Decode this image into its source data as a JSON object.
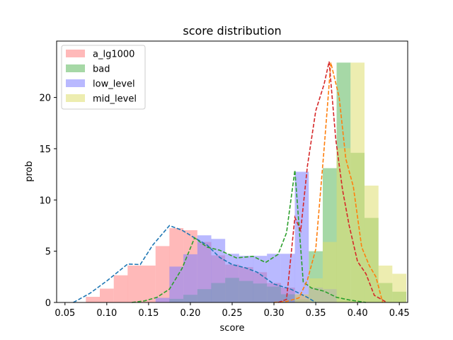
{
  "chart_data": {
    "type": "bar",
    "title": "score distribution",
    "xlabel": "score",
    "ylabel": "prob",
    "xlim": [
      0.04,
      0.46
    ],
    "ylim": [
      0,
      25.5
    ],
    "xticks": [
      0.05,
      0.1,
      0.15,
      0.2,
      0.25,
      0.3,
      0.35,
      0.4,
      0.45
    ],
    "xtick_labels": [
      "0.05",
      "0.10",
      "0.15",
      "0.20",
      "0.25",
      "0.30",
      "0.35",
      "0.40",
      "0.45"
    ],
    "yticks": [
      0,
      5,
      10,
      15,
      20
    ],
    "ytick_labels": [
      "0",
      "5",
      "10",
      "15",
      "20"
    ],
    "legend_position": "top-left",
    "bin_width": 0.0167,
    "series": [
      {
        "name": "a_lg1000",
        "color": "#ff7f7f",
        "bars": [
          {
            "x": 0.0833,
            "h": 0.55
          },
          {
            "x": 0.1,
            "h": 1.35
          },
          {
            "x": 0.1167,
            "h": 2.65
          },
          {
            "x": 0.1333,
            "h": 3.6
          },
          {
            "x": 0.15,
            "h": 3.6
          },
          {
            "x": 0.1667,
            "h": 5.5
          },
          {
            "x": 0.1833,
            "h": 7.25
          },
          {
            "x": 0.2,
            "h": 7.05
          },
          {
            "x": 0.2167,
            "h": 5.9
          },
          {
            "x": 0.2333,
            "h": 4.6
          },
          {
            "x": 0.25,
            "h": 3.7
          },
          {
            "x": 0.2667,
            "h": 3.45
          },
          {
            "x": 0.2833,
            "h": 2.95
          },
          {
            "x": 0.3,
            "h": 1.9
          },
          {
            "x": 0.3167,
            "h": 1.45
          },
          {
            "x": 0.3333,
            "h": 0.75
          }
        ]
      },
      {
        "name": "bad",
        "color": "#5cb85c",
        "bars": [
          {
            "x": 0.1833,
            "h": 0.35
          },
          {
            "x": 0.2,
            "h": 0.75
          },
          {
            "x": 0.2167,
            "h": 1.3
          },
          {
            "x": 0.2333,
            "h": 1.9
          },
          {
            "x": 0.25,
            "h": 2.4
          },
          {
            "x": 0.2667,
            "h": 2.1
          },
          {
            "x": 0.2833,
            "h": 1.85
          },
          {
            "x": 0.3,
            "h": 1.55
          },
          {
            "x": 0.3167,
            "h": 0.8
          },
          {
            "x": 0.3333,
            "h": 0.3
          },
          {
            "x": 0.35,
            "h": 5.0
          },
          {
            "x": 0.3667,
            "h": 13.1
          },
          {
            "x": 0.3833,
            "h": 23.4
          },
          {
            "x": 0.4,
            "h": 14.6
          },
          {
            "x": 0.4167,
            "h": 8.25
          },
          {
            "x": 0.4333,
            "h": 1.9
          },
          {
            "x": 0.45,
            "h": 1.05
          }
        ]
      },
      {
        "name": "low_level",
        "color": "#7f7fff",
        "bars": [
          {
            "x": 0.1667,
            "h": 0.45
          },
          {
            "x": 0.1833,
            "h": 3.5
          },
          {
            "x": 0.2,
            "h": 4.7
          },
          {
            "x": 0.2167,
            "h": 6.55
          },
          {
            "x": 0.2333,
            "h": 6.2
          },
          {
            "x": 0.25,
            "h": 4.75
          },
          {
            "x": 0.2667,
            "h": 4.55
          },
          {
            "x": 0.2833,
            "h": 4.55
          },
          {
            "x": 0.3,
            "h": 4.75
          },
          {
            "x": 0.3167,
            "h": 4.75
          },
          {
            "x": 0.3333,
            "h": 12.75
          },
          {
            "x": 0.35,
            "h": 1.45
          },
          {
            "x": 0.3667,
            "h": 1.3
          }
        ]
      },
      {
        "name": "mid_level",
        "color": "#dede70",
        "bars": [
          {
            "x": 0.3333,
            "h": 0.8
          },
          {
            "x": 0.35,
            "h": 2.35
          },
          {
            "x": 0.3667,
            "h": 5.9
          },
          {
            "x": 0.3833,
            "h": 15.05
          },
          {
            "x": 0.4,
            "h": 23.4
          },
          {
            "x": 0.4167,
            "h": 11.4
          },
          {
            "x": 0.4333,
            "h": 3.6
          },
          {
            "x": 0.45,
            "h": 2.8
          }
        ]
      }
    ],
    "density_lines": [
      {
        "color": "#1f77b4",
        "points": [
          [
            0.06,
            0
          ],
          [
            0.08,
            0.9
          ],
          [
            0.1,
            2.1
          ],
          [
            0.125,
            3.75
          ],
          [
            0.14,
            3.7
          ],
          [
            0.155,
            5.6
          ],
          [
            0.175,
            7.5
          ],
          [
            0.19,
            7.05
          ],
          [
            0.205,
            6.3
          ],
          [
            0.22,
            5.6
          ],
          [
            0.235,
            4.4
          ],
          [
            0.25,
            3.7
          ],
          [
            0.265,
            3.4
          ],
          [
            0.28,
            2.95
          ],
          [
            0.3,
            1.8
          ],
          [
            0.32,
            1.3
          ],
          [
            0.34,
            0.5
          ],
          [
            0.35,
            0
          ]
        ]
      },
      {
        "color": "#2ca02c",
        "points": [
          [
            0.13,
            0
          ],
          [
            0.145,
            0.15
          ],
          [
            0.16,
            0.5
          ],
          [
            0.175,
            1.3
          ],
          [
            0.19,
            3.3
          ],
          [
            0.205,
            6.3
          ],
          [
            0.22,
            5.4
          ],
          [
            0.235,
            5.1
          ],
          [
            0.255,
            4.35
          ],
          [
            0.275,
            4.5
          ],
          [
            0.29,
            3.9
          ],
          [
            0.305,
            4.7
          ],
          [
            0.315,
            6.8
          ],
          [
            0.325,
            12.9
          ],
          [
            0.335,
            2.0
          ],
          [
            0.345,
            1.4
          ],
          [
            0.36,
            1.1
          ],
          [
            0.375,
            0.5
          ],
          [
            0.39,
            0.25
          ],
          [
            0.41,
            0
          ]
        ]
      },
      {
        "color": "#ff7f0e",
        "points": [
          [
            0.3,
            0
          ],
          [
            0.315,
            0.1
          ],
          [
            0.33,
            0.45
          ],
          [
            0.34,
            2.2
          ],
          [
            0.35,
            5.2
          ],
          [
            0.36,
            15.0
          ],
          [
            0.368,
            23.4
          ],
          [
            0.378,
            20.0
          ],
          [
            0.386,
            14.0
          ],
          [
            0.395,
            11.3
          ],
          [
            0.405,
            5.4
          ],
          [
            0.414,
            3.6
          ],
          [
            0.422,
            2.5
          ],
          [
            0.43,
            0
          ]
        ]
      },
      {
        "color": "#d62728",
        "points": [
          [
            0.305,
            0
          ],
          [
            0.315,
            0.3
          ],
          [
            0.325,
            8.3
          ],
          [
            0.332,
            7.0
          ],
          [
            0.34,
            13.3
          ],
          [
            0.35,
            18.7
          ],
          [
            0.36,
            21.3
          ],
          [
            0.366,
            23.5
          ],
          [
            0.374,
            15.9
          ],
          [
            0.382,
            11.0
          ],
          [
            0.39,
            7.5
          ],
          [
            0.4,
            4.0
          ],
          [
            0.41,
            2.8
          ],
          [
            0.42,
            0.7
          ],
          [
            0.435,
            0
          ]
        ]
      }
    ]
  }
}
